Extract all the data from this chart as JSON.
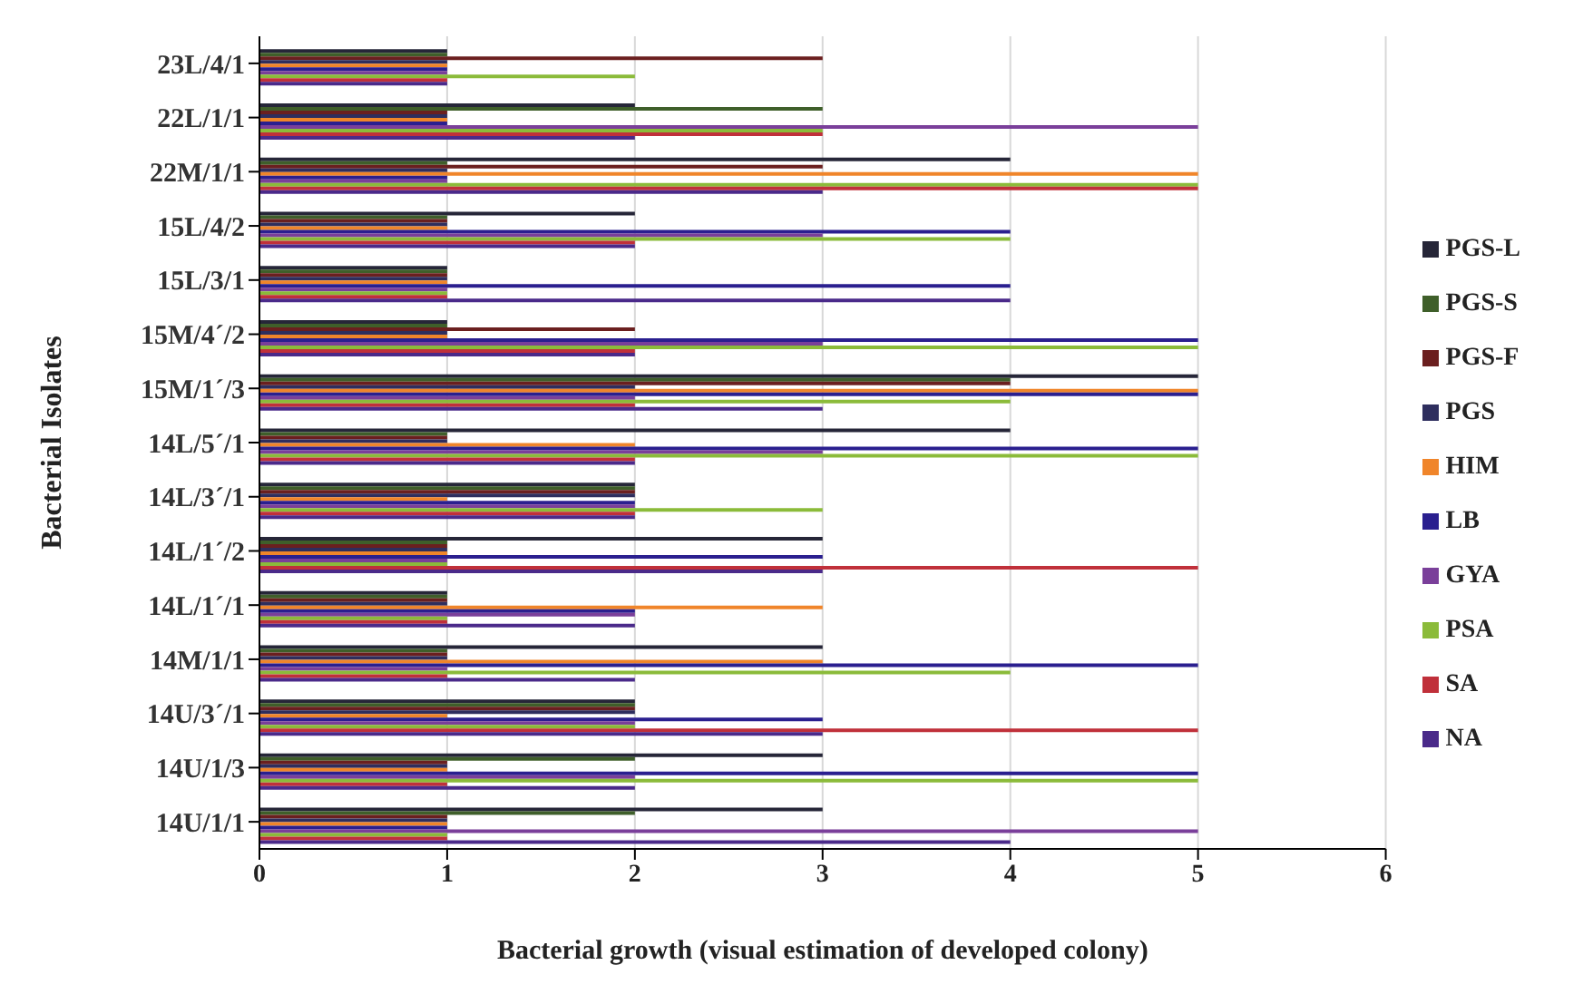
{
  "chart_data": {
    "type": "bar",
    "orientation": "horizontal",
    "xlabel": "Bacterial growth (visual estimation of developed colony)",
    "ylabel": "Bacterial Isolates",
    "categories": [
      "23L/4/1",
      "22L/1/1",
      "22M/1/1",
      "15L/4/2",
      "15L/3/1",
      "15M/4´/2",
      "15M/1´/3",
      "14L/5´/1",
      "14L/3´/1",
      "14L/1´/2",
      "14L/1´/1",
      "14M/1/1",
      "14U/3´/1",
      "14U/1/3",
      "14U/1/1"
    ],
    "series": [
      {
        "name": "PGS-L",
        "color": "#262638",
        "values": [
          1,
          2,
          4,
          2,
          1,
          1,
          5,
          4,
          2,
          3,
          1,
          3,
          2,
          3,
          3
        ]
      },
      {
        "name": "PGS-S",
        "color": "#3f5f2a",
        "values": [
          1,
          3,
          1,
          1,
          1,
          1,
          4,
          1,
          2,
          1,
          1,
          1,
          2,
          2,
          2
        ]
      },
      {
        "name": "PGS-F",
        "color": "#6b1f1f",
        "values": [
          3,
          1,
          3,
          1,
          1,
          2,
          4,
          1,
          2,
          1,
          1,
          1,
          2,
          1,
          1
        ]
      },
      {
        "name": "PGS",
        "color": "#2e2e5e",
        "values": [
          1,
          1,
          1,
          1,
          1,
          1,
          2,
          1,
          2,
          1,
          1,
          1,
          2,
          1,
          1
        ]
      },
      {
        "name": "HIM",
        "color": "#f0852a",
        "values": [
          1,
          1,
          5,
          1,
          1,
          1,
          5,
          2,
          1,
          1,
          3,
          3,
          1,
          1,
          1
        ]
      },
      {
        "name": "LB",
        "color": "#2a1f8f",
        "values": [
          1,
          1,
          1,
          4,
          4,
          5,
          5,
          5,
          2,
          3,
          2,
          5,
          3,
          5,
          1
        ]
      },
      {
        "name": "GYA",
        "color": "#7a3f9a",
        "values": [
          1,
          5,
          1,
          3,
          1,
          3,
          2,
          3,
          2,
          1,
          2,
          1,
          2,
          2,
          5
        ]
      },
      {
        "name": "PSA",
        "color": "#8bbb3a",
        "values": [
          2,
          3,
          5,
          4,
          1,
          5,
          4,
          5,
          3,
          1,
          1,
          4,
          2,
          5,
          1
        ]
      },
      {
        "name": "SA",
        "color": "#c0303a",
        "values": [
          1,
          3,
          5,
          2,
          1,
          2,
          2,
          2,
          2,
          5,
          1,
          1,
          5,
          1,
          1
        ]
      },
      {
        "name": "NA",
        "color": "#4a2a8a",
        "values": [
          1,
          2,
          3,
          2,
          4,
          2,
          3,
          2,
          2,
          3,
          2,
          2,
          3,
          2,
          4
        ]
      }
    ],
    "xlim": [
      0,
      6
    ],
    "xticks": [
      0,
      1,
      2,
      3,
      4,
      5,
      6
    ],
    "grid": "x",
    "legend": "right"
  }
}
